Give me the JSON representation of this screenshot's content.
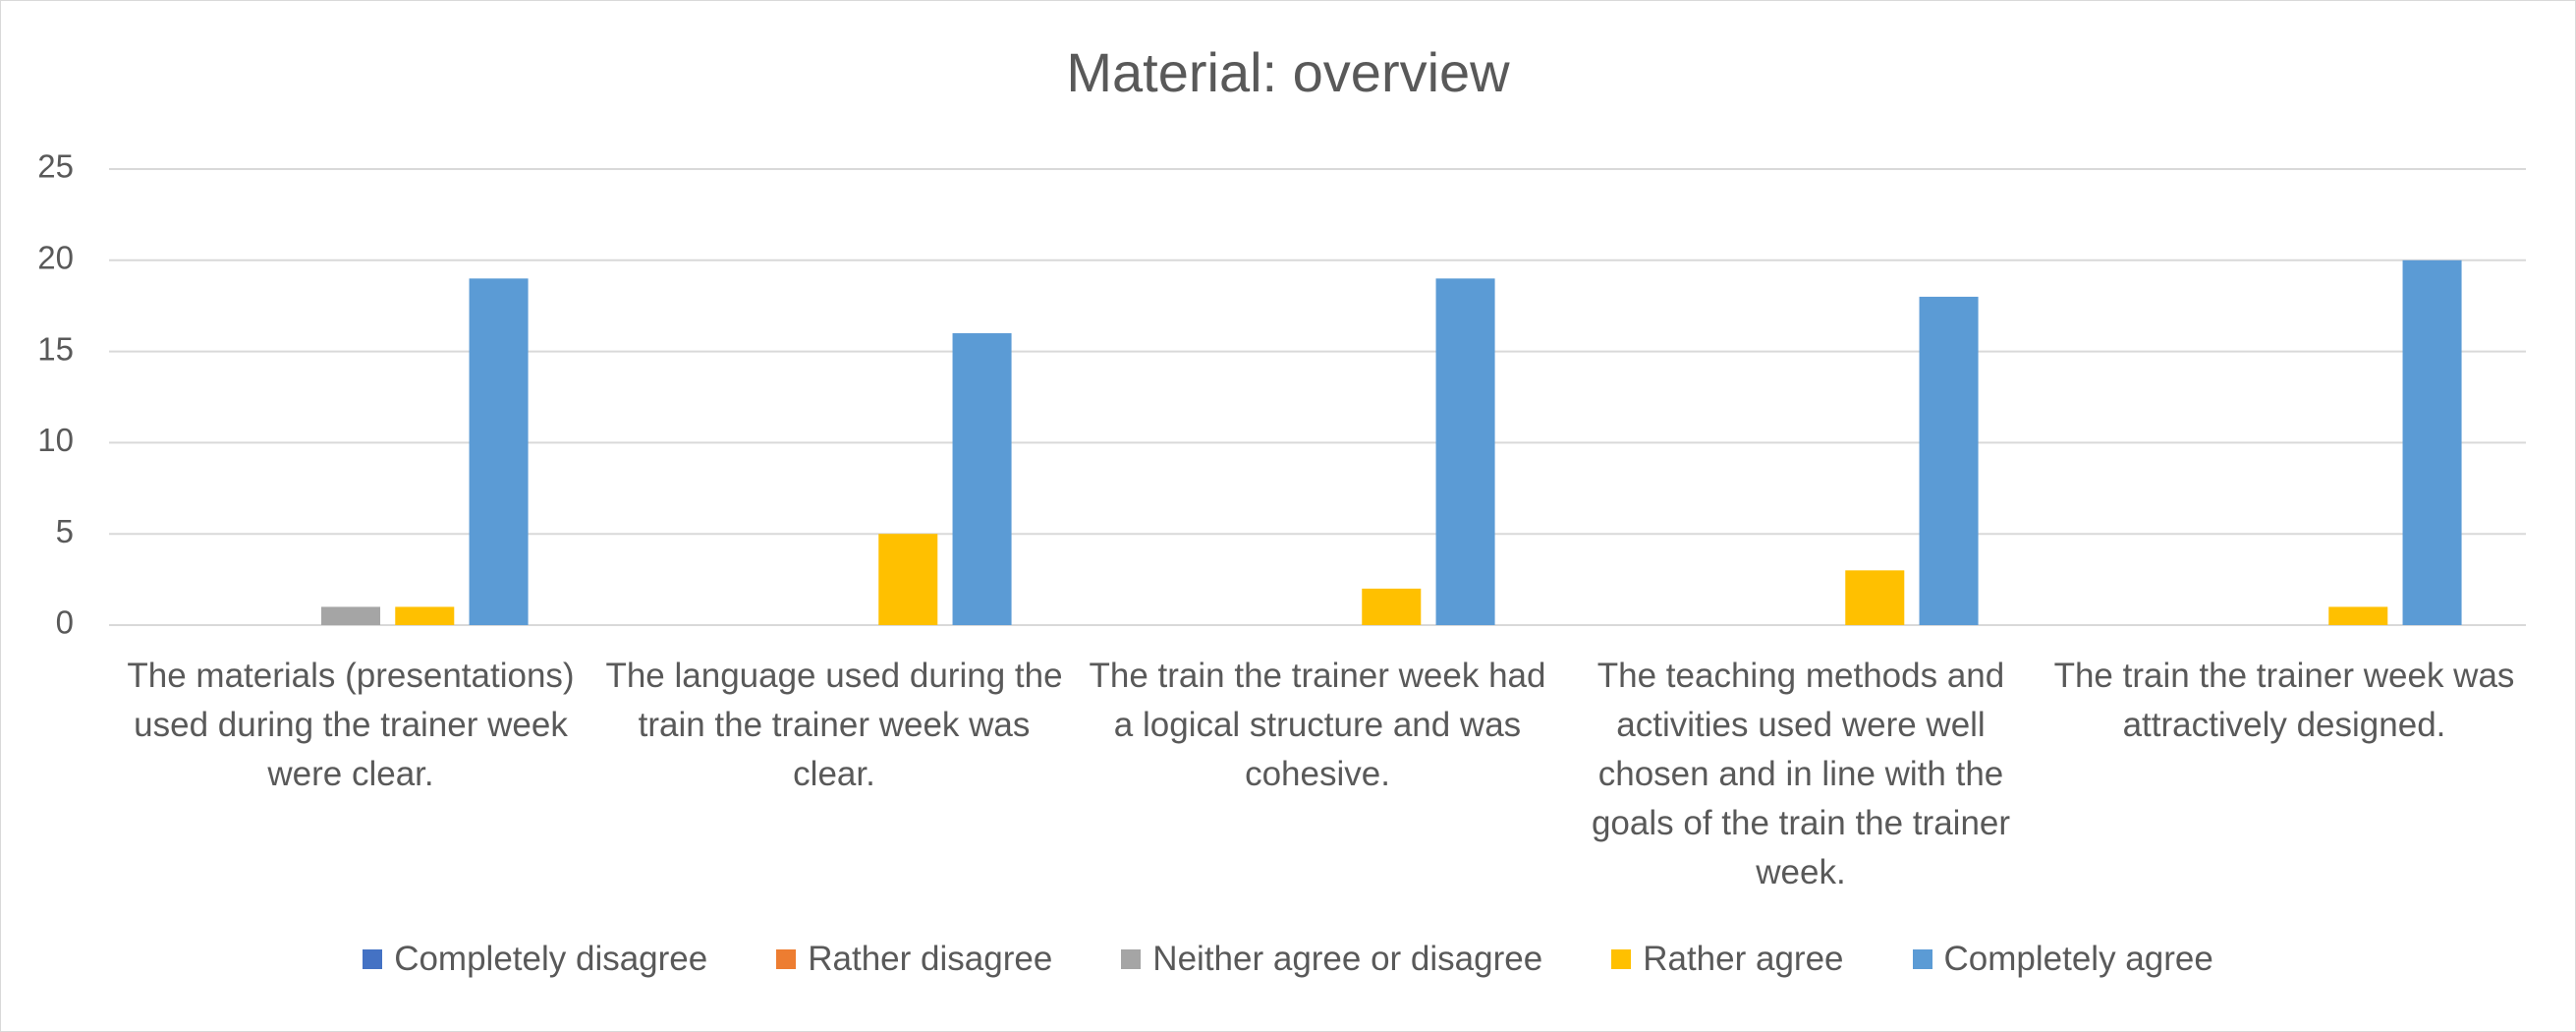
{
  "chart_data": {
    "type": "bar",
    "title": "Material: overview",
    "categories": [
      "The materials (presentations) used during the trainer week were clear.",
      "The language used during the train the trainer week was clear.",
      "The train the trainer week had a logical structure and was cohesive.",
      "The teaching methods and activities used were well chosen and in line with the goals of the train the trainer week.",
      "The train the trainer week was attractively designed."
    ],
    "series": [
      {
        "name": "Completely disagree",
        "color": "#4472c4",
        "values": [
          0,
          0,
          0,
          0,
          0
        ]
      },
      {
        "name": "Rather disagree",
        "color": "#ed7d31",
        "values": [
          0,
          0,
          0,
          0,
          0
        ]
      },
      {
        "name": "Neither agree or disagree",
        "color": "#a5a5a5",
        "values": [
          1,
          0,
          0,
          0,
          0
        ]
      },
      {
        "name": "Rather agree",
        "color": "#ffc000",
        "values": [
          1,
          5,
          2,
          3,
          1
        ]
      },
      {
        "name": "Completely agree",
        "color": "#5b9bd5",
        "values": [
          19,
          16,
          19,
          18,
          20
        ]
      }
    ],
    "ylim": [
      0,
      25
    ],
    "yticks": [
      0,
      5,
      10,
      15,
      20,
      25
    ],
    "grid": true,
    "legend": "bottom"
  }
}
